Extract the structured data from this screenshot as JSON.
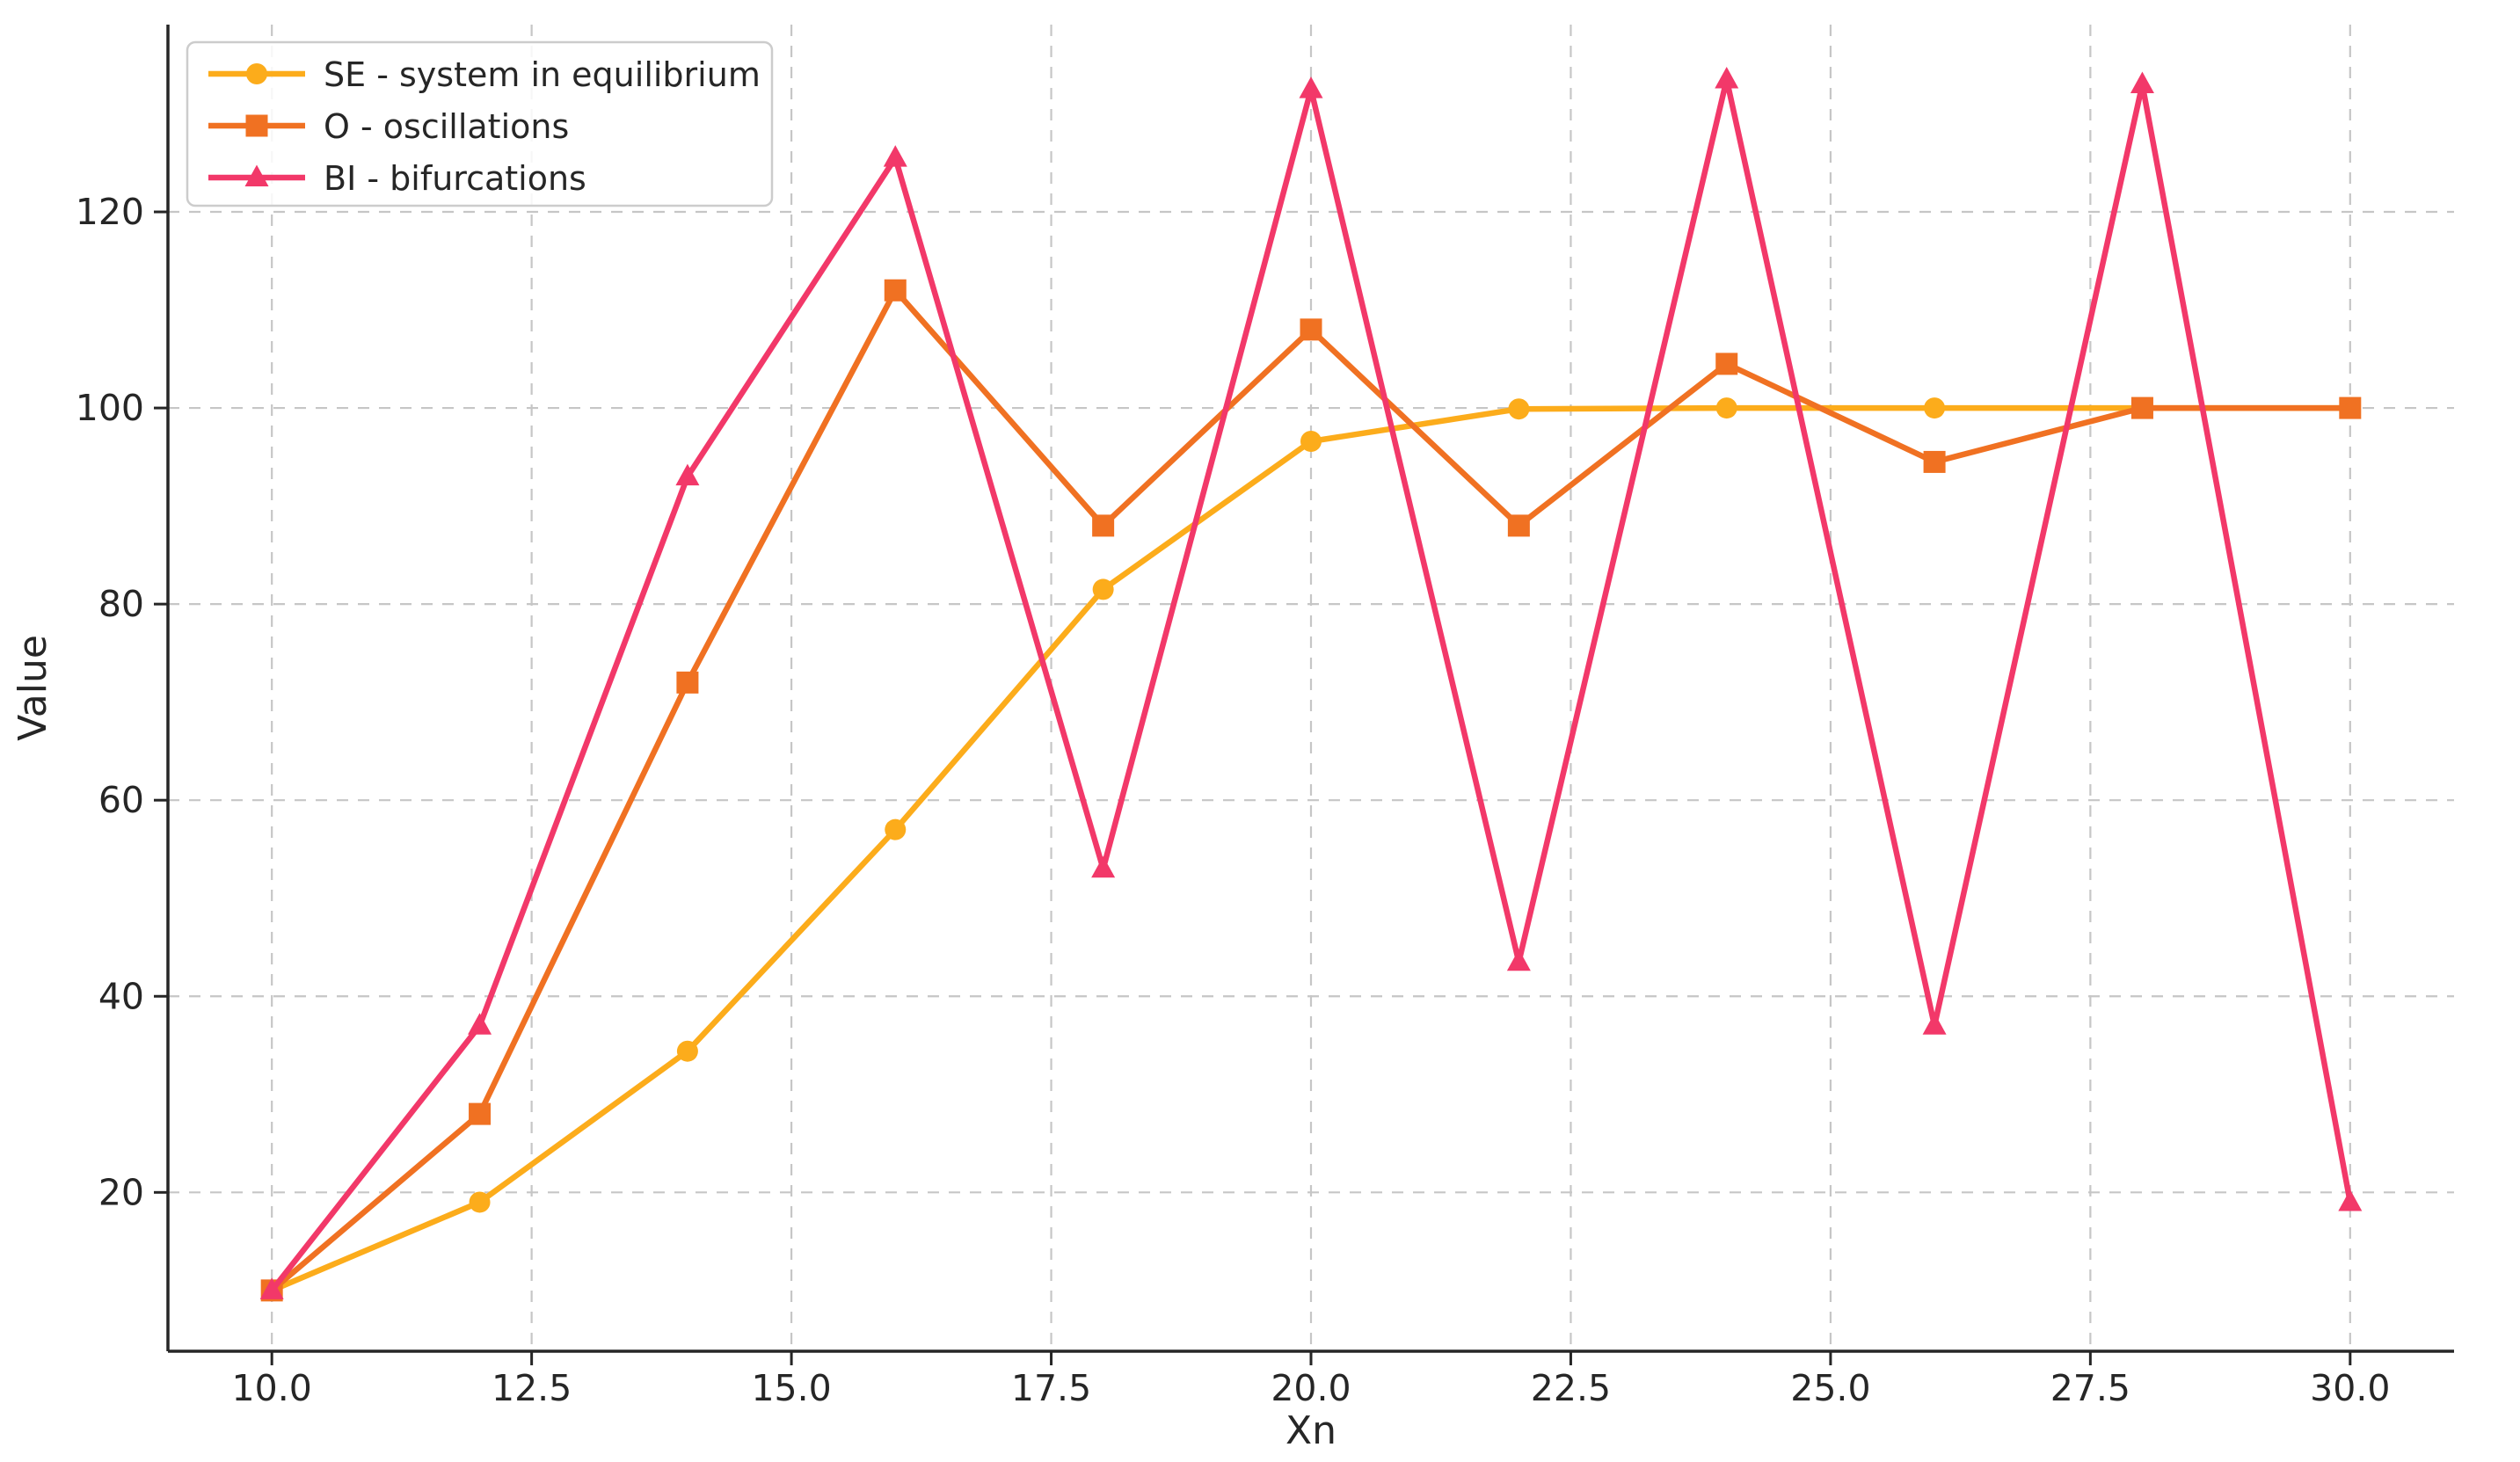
{
  "chart_data": {
    "type": "line",
    "title": "",
    "xlabel": "Xn",
    "ylabel": "Value",
    "x": [
      10,
      12,
      14,
      16,
      18,
      20,
      22,
      24,
      26,
      28,
      30
    ],
    "series": [
      {
        "name": "SE - system in equilibrium",
        "marker": "circle",
        "color": "#FCAC1B",
        "values": [
          10,
          19,
          34.4,
          57,
          81.5,
          96.6,
          99.9,
          100,
          100,
          100,
          100
        ]
      },
      {
        "name": "O - oscillations",
        "marker": "square",
        "color": "#F07122",
        "values": [
          10,
          28,
          72,
          112,
          88,
          108,
          88,
          104.5,
          94.5,
          100,
          100
        ]
      },
      {
        "name": "BI - bifurcations",
        "marker": "triangle",
        "color": "#F23869",
        "values": [
          10,
          37,
          93,
          125.5,
          53,
          132.5,
          43.5,
          133.5,
          37,
          133,
          19
        ]
      }
    ],
    "xlim": [
      9,
      31
    ],
    "ylim": [
      3.8,
      139.1
    ],
    "xticks": [
      {
        "v": 10,
        "label": "10.0"
      },
      {
        "v": 12.5,
        "label": "12.5"
      },
      {
        "v": 15,
        "label": "15.0"
      },
      {
        "v": 17.5,
        "label": "17.5"
      },
      {
        "v": 20,
        "label": "20.0"
      },
      {
        "v": 22.5,
        "label": "22.5"
      },
      {
        "v": 25,
        "label": "25.0"
      },
      {
        "v": 27.5,
        "label": "27.5"
      },
      {
        "v": 30,
        "label": "30.0"
      }
    ],
    "yticks": [
      {
        "v": 20,
        "label": "20"
      },
      {
        "v": 40,
        "label": "40"
      },
      {
        "v": 60,
        "label": "60"
      },
      {
        "v": 80,
        "label": "80"
      },
      {
        "v": 100,
        "label": "100"
      },
      {
        "v": 120,
        "label": "120"
      }
    ],
    "grid": true,
    "grid_style": "dashed",
    "legend_position": "upper left"
  },
  "style": {
    "background": "#ffffff",
    "grid_color": "#c6c6c6",
    "spine_color": "#262626",
    "text_color": "#262626",
    "legend_border_color": "#cccccc",
    "legend_fill": "#ffffff"
  }
}
